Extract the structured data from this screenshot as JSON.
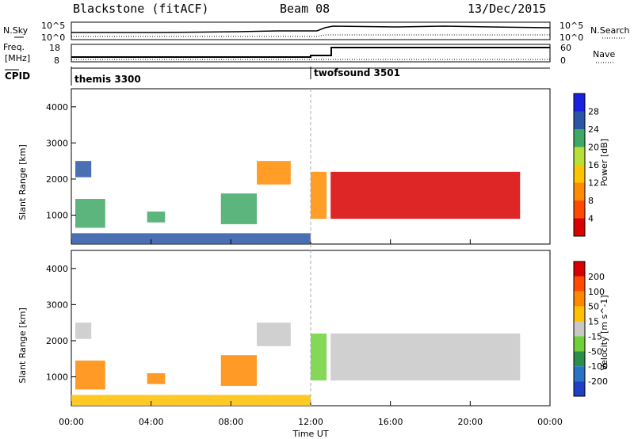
{
  "header": {
    "station": "Blackstone (fitACF)",
    "beam": "Beam 08",
    "date": "13/Dec/2015"
  },
  "top_panel": {
    "left_label": "N.Sky",
    "right_label": "N.Search",
    "left_ticks": [
      "10^5",
      "10^0"
    ],
    "right_ticks": [
      "10^5",
      "10^0"
    ]
  },
  "freq_panel": {
    "left_label_1": "Freq.",
    "left_label_2": "[MHz]",
    "right_label": "Nave",
    "left_ticks": [
      "18",
      "8"
    ],
    "right_ticks": [
      "60",
      "0"
    ]
  },
  "cpid_panel": {
    "label": "CPID",
    "programs": [
      {
        "name": "themis 3300",
        "start_hour": 0
      },
      {
        "name": "twofsound 3501",
        "start_hour": 12.0
      }
    ]
  },
  "chart_data": [
    {
      "type": "heatmap",
      "title": "",
      "ylabel": "Slant Range [km]",
      "colorbar_label": "Power [dB]",
      "colorbar_ticks": [
        "28",
        "24",
        "20",
        "16",
        "12",
        "8",
        "4"
      ],
      "xlim": [
        0,
        24
      ],
      "ylim": [
        200,
        4500
      ],
      "yticks": [
        "1000",
        "2000",
        "3000",
        "4000"
      ],
      "regions": [
        {
          "t0": 0.2,
          "t1": 1.7,
          "r0": 650,
          "r1": 1450,
          "level": "mid"
        },
        {
          "t0": 0.2,
          "t1": 1.0,
          "r0": 2050,
          "r1": 2500,
          "level": "low"
        },
        {
          "t0": 3.8,
          "t1": 4.7,
          "r0": 800,
          "r1": 1100,
          "level": "mid"
        },
        {
          "t0": 7.5,
          "t1": 9.3,
          "r0": 750,
          "r1": 1600,
          "level": "mid"
        },
        {
          "t0": 9.3,
          "t1": 11.0,
          "r0": 1850,
          "r1": 2500,
          "level": "high"
        },
        {
          "t0": 12.0,
          "t1": 12.8,
          "r0": 900,
          "r1": 2200,
          "level": "high"
        },
        {
          "t0": 13.0,
          "t1": 22.5,
          "r0": 900,
          "r1": 2200,
          "level": "strong"
        },
        {
          "t0": 0.0,
          "t1": 12.0,
          "r0": 200,
          "r1": 500,
          "level": "low"
        }
      ]
    },
    {
      "type": "heatmap",
      "title": "",
      "ylabel": "Slant Range [km]",
      "colorbar_label": "Velocity [m s^-1]",
      "colorbar_ticks": [
        "200",
        "100",
        "50",
        "15",
        "-15",
        "-50",
        "-100",
        "-200"
      ],
      "xlim": [
        0,
        24
      ],
      "ylim": [
        200,
        4500
      ],
      "yticks": [
        "1000",
        "2000",
        "3000",
        "4000"
      ],
      "xticks": [
        "00:00",
        "04:00",
        "08:00",
        "12:00",
        "16:00",
        "20:00",
        "00:00"
      ],
      "xlabel": "Time UT",
      "regions": [
        {
          "t0": 0.2,
          "t1": 1.7,
          "r0": 650,
          "r1": 1450,
          "level": "neg_mid"
        },
        {
          "t0": 0.2,
          "t1": 1.0,
          "r0": 2050,
          "r1": 2500,
          "level": "zero"
        },
        {
          "t0": 3.8,
          "t1": 4.7,
          "r0": 800,
          "r1": 1100,
          "level": "neg_mid"
        },
        {
          "t0": 7.5,
          "t1": 9.3,
          "r0": 750,
          "r1": 1600,
          "level": "neg_high"
        },
        {
          "t0": 9.3,
          "t1": 11.0,
          "r0": 1850,
          "r1": 2500,
          "level": "zero"
        },
        {
          "t0": 12.0,
          "t1": 12.8,
          "r0": 900,
          "r1": 2200,
          "level": "pos_mid"
        },
        {
          "t0": 13.0,
          "t1": 22.5,
          "r0": 900,
          "r1": 2200,
          "level": "zero"
        },
        {
          "t0": 0.0,
          "t1": 12.0,
          "r0": 200,
          "r1": 500,
          "level": "neg_low"
        }
      ]
    }
  ],
  "colors": {
    "power": [
      "#d90000",
      "#ff4a00",
      "#ff8c00",
      "#ffc400",
      "#b6df3a",
      "#40a865",
      "#2b56a6",
      "#1a20e0"
    ],
    "velocity": [
      "#2040c8",
      "#2a72c3",
      "#2b8f4a",
      "#6fd13a",
      "#c8c8c8",
      "#ffc000",
      "#ff8800",
      "#ff4a00",
      "#d90000"
    ],
    "level_map_power": {
      "low": "#2b56a6",
      "mid": "#40a865",
      "high": "#ff8c00",
      "strong": "#d90000"
    },
    "level_map_velocity": {
      "neg_low": "#ffc000",
      "neg_mid": "#ff8800",
      "neg_high": "#ff8800",
      "zero": "#c8c8c8",
      "pos_mid": "#6fd13a"
    }
  }
}
